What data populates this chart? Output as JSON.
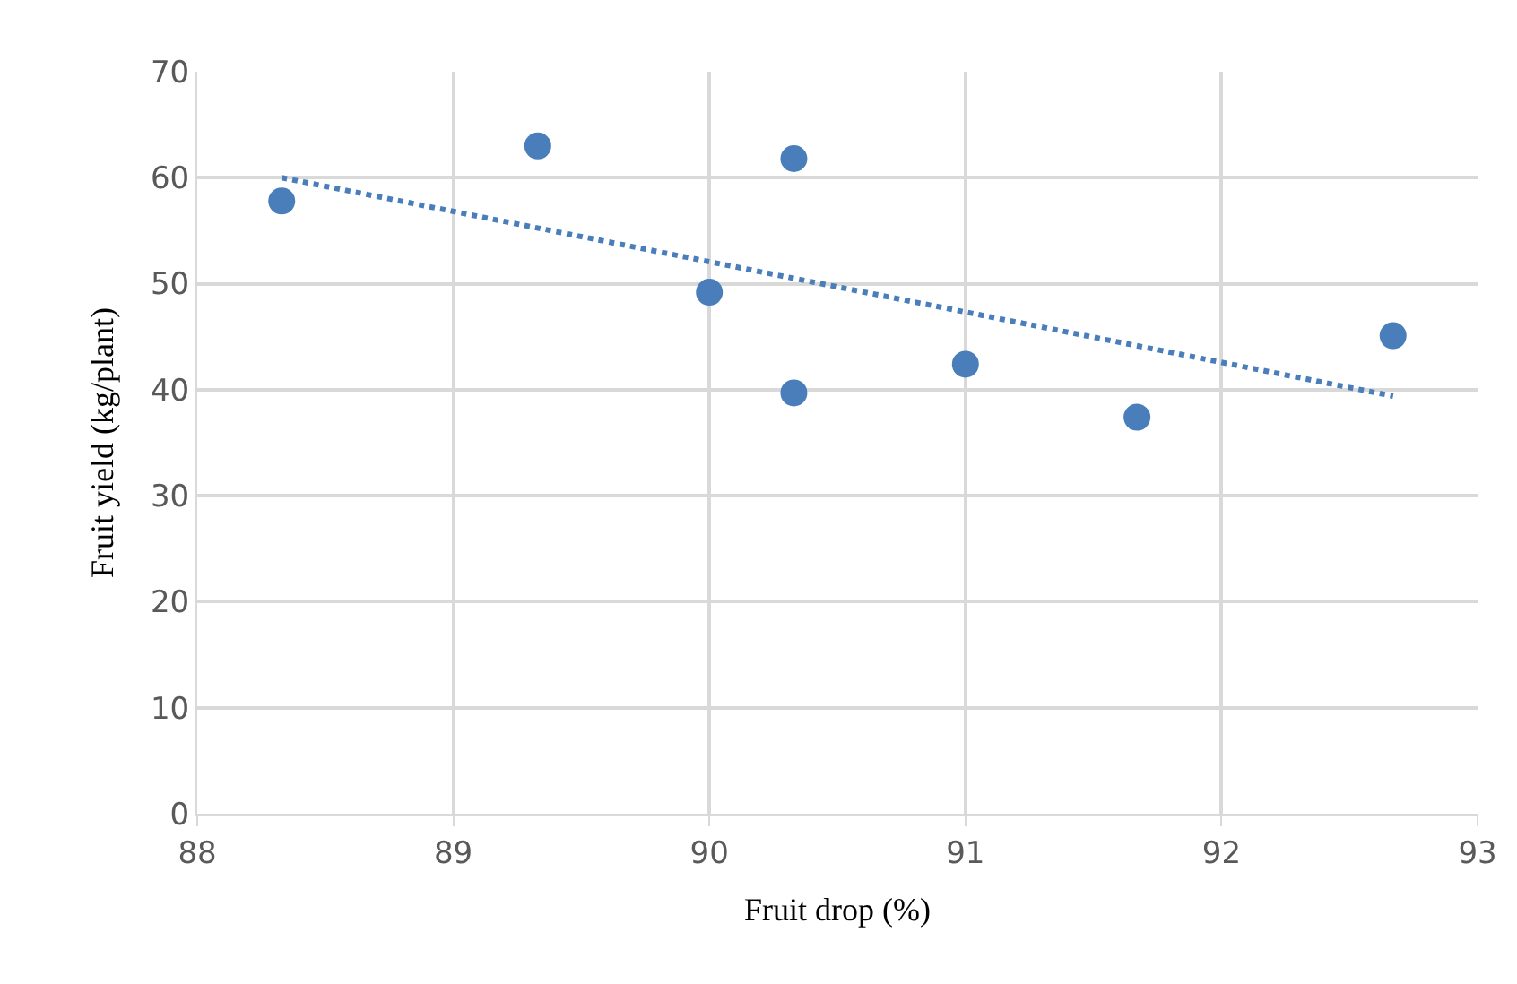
{
  "chart_data": {
    "type": "scatter",
    "xlabel": "Fruit drop (%)",
    "ylabel": "Fruit yield (kg/plant)",
    "xlim": [
      88,
      93
    ],
    "xticks": [
      88,
      89,
      90,
      91,
      92,
      93
    ],
    "ylim": [
      0,
      70
    ],
    "yticks": [
      0,
      10,
      20,
      30,
      40,
      50,
      60,
      70
    ],
    "grid": true,
    "marker": "circle",
    "series": [
      {
        "color": "#4a7ebb",
        "x": [
          88.33,
          89.33,
          90.33,
          90.0,
          90.33,
          91.0,
          91.67,
          92.67
        ],
        "values": [
          57.8,
          63.0,
          61.8,
          49.2,
          39.7,
          42.4,
          37.4,
          45.1
        ]
      },
      {
        "type": "line",
        "color": "#4a7ebb",
        "line_style": "dotted",
        "marker": "none",
        "x": [
          88.33,
          92.67
        ],
        "values": [
          60.0,
          39.4
        ]
      }
    ]
  }
}
